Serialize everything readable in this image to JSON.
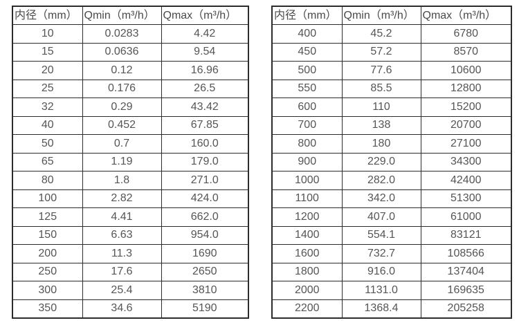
{
  "colors": {
    "border": "#2b2b2b",
    "text": "#4d4d4d",
    "background": "#ffffff"
  },
  "chart_data": [
    {
      "type": "table",
      "columns": [
        "内径（mm）",
        "Qmin（m³/h）",
        "Qmax（m³/h）"
      ],
      "rows": [
        [
          "10",
          "0.0283",
          "4.42"
        ],
        [
          "15",
          "0.0636",
          "9.54"
        ],
        [
          "20",
          "0.12",
          "16.96"
        ],
        [
          "25",
          "0.176",
          "26.5"
        ],
        [
          "32",
          "0.29",
          "43.42"
        ],
        [
          "40",
          "0.452",
          "67.85"
        ],
        [
          "50",
          "0.7",
          "160.0"
        ],
        [
          "65",
          "1.19",
          "179.0"
        ],
        [
          "80",
          "1.8",
          "271.0"
        ],
        [
          "100",
          "2.82",
          "424.0"
        ],
        [
          "125",
          "4.41",
          "662.0"
        ],
        [
          "150",
          "6.63",
          "954.0"
        ],
        [
          "200",
          "11.3",
          "1690"
        ],
        [
          "250",
          "17.6",
          "2650"
        ],
        [
          "300",
          "25.4",
          "3810"
        ],
        [
          "350",
          "34.6",
          "5190"
        ]
      ]
    },
    {
      "type": "table",
      "columns": [
        "内径（mm）",
        "Qmin（m³/h）",
        "Qmax（m³/h）"
      ],
      "rows": [
        [
          "400",
          "45.2",
          "6780"
        ],
        [
          "450",
          "57.2",
          "8570"
        ],
        [
          "500",
          "77.6",
          "10600"
        ],
        [
          "550",
          "85.5",
          "12800"
        ],
        [
          "600",
          "110",
          "15200"
        ],
        [
          "700",
          "138",
          "20700"
        ],
        [
          "800",
          "180",
          "27100"
        ],
        [
          "900",
          "229.0",
          "34300"
        ],
        [
          "1000",
          "282.0",
          "42400"
        ],
        [
          "1100",
          "342.0",
          "51300"
        ],
        [
          "1200",
          "407.0",
          "61000"
        ],
        [
          "1400",
          "554.1",
          "83121"
        ],
        [
          "1600",
          "732.7",
          "108566"
        ],
        [
          "1800",
          "916.0",
          "137404"
        ],
        [
          "2000",
          "1131.0",
          "169635"
        ],
        [
          "2200",
          "1368.4",
          "205258"
        ]
      ]
    }
  ]
}
